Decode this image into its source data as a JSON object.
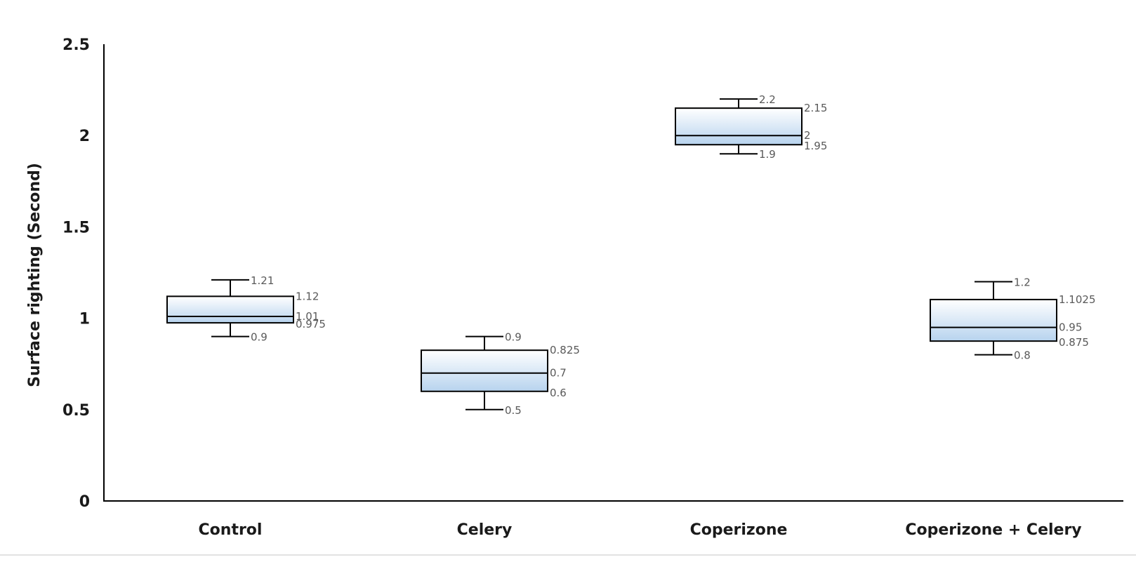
{
  "chart_data": {
    "type": "box",
    "ylabel": "Surface righting (Second)",
    "xlabel": "",
    "ylim": [
      0,
      2.5
    ],
    "yticks": [
      "0",
      "0.5",
      "1",
      "1.5",
      "2",
      "2.5"
    ],
    "categories": [
      "Control",
      "Celery",
      "Coperizone",
      "Coperizone + Celery"
    ],
    "boxes": [
      {
        "category": "Control",
        "min": 0.9,
        "q1": 0.975,
        "median": 1.01,
        "q3": 1.12,
        "max": 1.21,
        "labels": {
          "max": "1.21",
          "q3": "1.12",
          "median": "1.01",
          "q1": "0.975",
          "min": "0.9"
        }
      },
      {
        "category": "Celery",
        "min": 0.5,
        "q1": 0.6,
        "median": 0.7,
        "q3": 0.825,
        "max": 0.9,
        "labels": {
          "max": "0.9",
          "q3": "0.825",
          "median": "0.7",
          "q1": "0.6",
          "min": "0.5"
        }
      },
      {
        "category": "Coperizone",
        "min": 1.9,
        "q1": 1.95,
        "median": 2,
        "q3": 2.15,
        "max": 2.2,
        "labels": {
          "max": "2.2",
          "q3": "2.15",
          "median": "2",
          "q1": "1.95",
          "min": "1.9"
        }
      },
      {
        "category": "Coperizone + Celery",
        "min": 0.8,
        "q1": 0.875,
        "median": 0.95,
        "q3": 1.1025,
        "max": 1.2,
        "labels": {
          "max": "1.2",
          "q3": "1.1025",
          "median": "0.95",
          "q1": "0.875",
          "min": "0.8"
        }
      }
    ],
    "grid": false,
    "box_fill_colors": [
      "#ffffff",
      "#b7d3ee"
    ],
    "stroke_color": "#000000",
    "label_color": "#595959"
  }
}
